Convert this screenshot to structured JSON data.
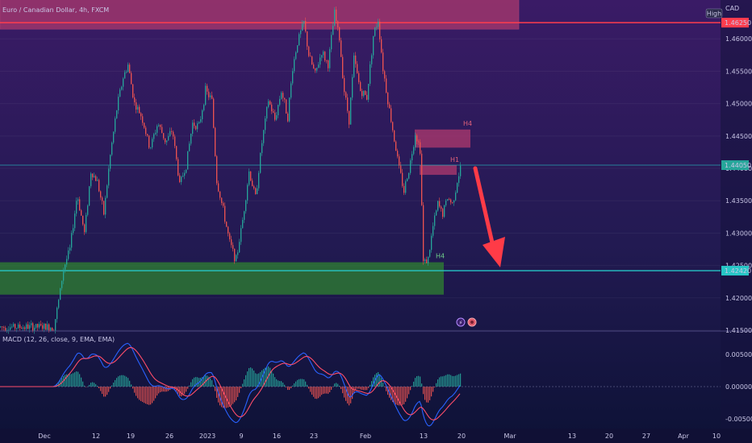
{
  "header": {
    "symbol_title": "Euro / Canadian Dollar, 4h, FXCM",
    "currency": "CAD",
    "high_badge": "High"
  },
  "macd": {
    "title": "MACD (12, 26, close, 9, EMA, EMA)"
  },
  "colors": {
    "background_top": "#3a1b66",
    "background_bottom": "#0d1236",
    "bull": "#26a69a",
    "bear": "#ef5350",
    "red_line": "#ff3d4e",
    "teal_line": "#26c6c6",
    "supply_zone": "#b03a6e",
    "demand_zone": "#2e7d32",
    "arrow": "#ff3b47",
    "macd_line": "#2962ff",
    "signal_line": "#ff4d6a"
  },
  "chart_data": {
    "type": "candlestick",
    "pair": "EUR/CAD",
    "timeframe": "4h",
    "y_axis_ticks": [
      "1.46000",
      "1.45500",
      "1.45000",
      "1.44500",
      "1.44000",
      "1.43500",
      "1.43000",
      "1.42500",
      "1.42000",
      "1.41500"
    ],
    "x_axis_ticks": [
      "Dec",
      "12",
      "19",
      "26",
      "2023",
      "9",
      "16",
      "23",
      "Feb",
      "13",
      "20",
      "Mar",
      "13",
      "20",
      "27",
      "Apr",
      "10"
    ],
    "ylim": [
      1.415,
      1.466
    ],
    "price_levels": [
      {
        "name": "red-resistance-line",
        "price": 1.4625,
        "color": "#ff3d4e",
        "label": "1.46250"
      },
      {
        "name": "current-price-line",
        "price": 1.4405,
        "color": "#26c6c6",
        "label": "1.44050"
      },
      {
        "name": "teal-support-line",
        "price": 1.4242,
        "color": "#26c6c6",
        "label": "1.42420"
      }
    ],
    "zones": [
      {
        "name": "top-supply-zone",
        "type": "supply",
        "price_top": 1.4665,
        "price_bottom": 1.4615
      },
      {
        "name": "h4-supply-zone",
        "type": "supply",
        "label": "H4",
        "price_top": 1.446,
        "price_bottom": 1.4432
      },
      {
        "name": "h1-supply-zone",
        "type": "supply",
        "label": "H1",
        "price_top": 1.4405,
        "price_bottom": 1.439
      },
      {
        "name": "demand-zone",
        "type": "demand",
        "label": "H4",
        "price_top": 1.4255,
        "price_bottom": 1.4205
      }
    ],
    "projection": {
      "type": "arrow",
      "direction": "down",
      "from_price": 1.4405,
      "to_price": 1.4247
    },
    "macd_axis_ticks": [
      "0.00500",
      "0.00000",
      "-0.00500"
    ],
    "macd_ylim": [
      -0.0065,
      0.0085
    ]
  }
}
